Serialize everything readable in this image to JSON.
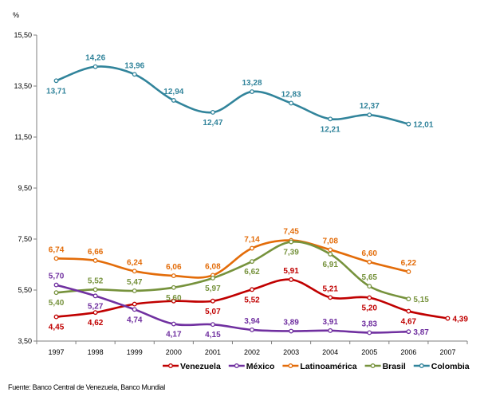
{
  "chart_data": {
    "type": "line",
    "unit_label": "%",
    "x": [
      "1997",
      "1998",
      "1999",
      "2000",
      "2001",
      "2002",
      "2003",
      "2004",
      "2005",
      "2006",
      "2007"
    ],
    "y_ticks": [
      "3,50",
      "5,50",
      "7,50",
      "9,50",
      "11,50",
      "13,50",
      "15,50"
    ],
    "ylim": [
      3.5,
      15.5
    ],
    "grid": false,
    "legend_position": "bottom",
    "smooth": true,
    "series": [
      {
        "name": "Venezuela",
        "color": "#c00000",
        "values": [
          4.45,
          4.62,
          4.95,
          5.07,
          5.07,
          5.52,
          5.91,
          5.21,
          5.2,
          4.67,
          4.39
        ],
        "labels": [
          "4,45",
          "4,62",
          "",
          "",
          "5,07",
          "5,52",
          "5,91",
          "5,21",
          "5,20",
          "4,67",
          "4,39"
        ],
        "label_pos": [
          "below",
          "below",
          "",
          "",
          "below",
          "below",
          "above",
          "above",
          "below",
          "below",
          "right"
        ]
      },
      {
        "name": "México",
        "color": "#7030a0",
        "values": [
          5.7,
          5.27,
          4.74,
          4.17,
          4.15,
          3.94,
          3.89,
          3.91,
          3.83,
          3.87,
          null
        ],
        "labels": [
          "5,70",
          "5,27",
          "4,74",
          "4,17",
          "4,15",
          "3,94",
          "3,89",
          "3,91",
          "3,83",
          "3,87",
          ""
        ],
        "label_pos": [
          "above",
          "below",
          "below",
          "below",
          "below",
          "above",
          "above",
          "above",
          "above",
          "right",
          ""
        ]
      },
      {
        "name": "Latinoamérica",
        "color": "#e36c09",
        "values": [
          6.74,
          6.66,
          6.24,
          6.06,
          6.08,
          7.14,
          7.45,
          7.08,
          6.6,
          6.22,
          null
        ],
        "labels": [
          "6,74",
          "6,66",
          "6,24",
          "6,06",
          "6,08",
          "7,14",
          "7,45",
          "7,08",
          "6,60",
          "6,22",
          ""
        ],
        "label_pos": [
          "above",
          "above",
          "above",
          "above",
          "above",
          "above",
          "above",
          "above",
          "above",
          "above",
          ""
        ]
      },
      {
        "name": "Brasil",
        "color": "#76923c",
        "values": [
          5.4,
          5.52,
          5.47,
          5.6,
          5.97,
          6.62,
          7.39,
          6.91,
          5.65,
          5.15,
          null
        ],
        "labels": [
          "5,40",
          "5,52",
          "5,47",
          "5,60",
          "5,97",
          "6,62",
          "7,39",
          "6,91",
          "5,65",
          "5,15",
          ""
        ],
        "label_pos": [
          "below",
          "above",
          "above",
          "below",
          "below",
          "below",
          "below",
          "below",
          "above",
          "right",
          ""
        ]
      },
      {
        "name": "Colombia",
        "color": "#31849b",
        "values": [
          13.71,
          14.26,
          13.96,
          12.94,
          12.47,
          13.28,
          12.83,
          12.21,
          12.37,
          12.01,
          null
        ],
        "labels": [
          "13,71",
          "14,26",
          "13,96",
          "12,94",
          "12,47",
          "13,28",
          "12,83",
          "12,21",
          "12,37",
          "12,01",
          ""
        ],
        "label_pos": [
          "below",
          "above",
          "above",
          "above",
          "below",
          "above",
          "above",
          "below",
          "above",
          "right",
          ""
        ]
      }
    ]
  },
  "source": "Fuente: Banco Central de Venezuela, Banco Mundial"
}
